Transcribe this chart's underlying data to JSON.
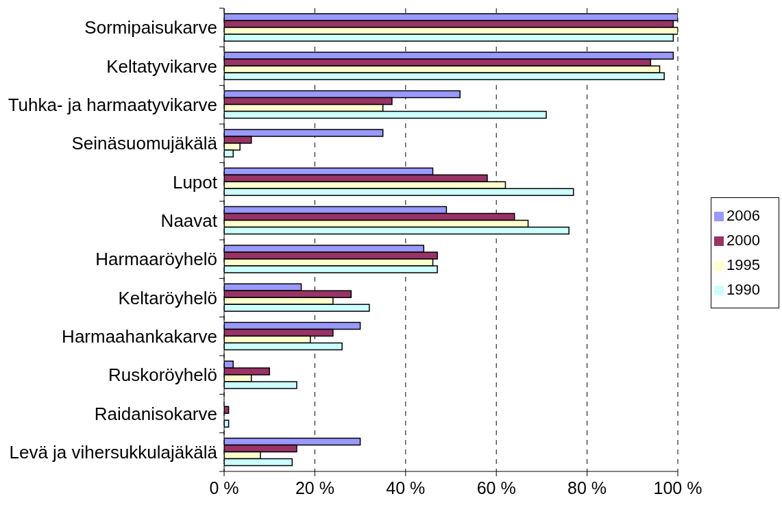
{
  "chart_data": {
    "type": "bar",
    "orientation": "horizontal",
    "categories": [
      "Sormipaisukarve",
      "Keltatyvikarve",
      "Tuhka- ja harmaatyvikarve",
      "Seinäsuomujäkälä",
      "Lupot",
      "Naavat",
      "Harmaaröyhelö",
      "Keltaröyhelö",
      "Harmaahankakarve",
      "Ruskoröyhelö",
      "Raidanisokarve",
      "Levä ja vihersukkulajäkälä"
    ],
    "series": [
      {
        "name": "2006",
        "color": "#9999ff",
        "values": [
          100,
          99,
          52,
          35,
          46,
          49,
          44,
          17,
          30,
          2,
          0,
          30
        ]
      },
      {
        "name": "2000",
        "color": "#993366",
        "values": [
          99,
          94,
          37,
          6,
          58,
          64,
          47,
          28,
          24,
          10,
          1,
          16
        ]
      },
      {
        "name": "1995",
        "color": "#ffffcc",
        "values": [
          100,
          96,
          35,
          3.5,
          62,
          67,
          46,
          24,
          19,
          6,
          0,
          8
        ]
      },
      {
        "name": "1990",
        "color": "#ccffff",
        "values": [
          99,
          97,
          71,
          2,
          77,
          76,
          47,
          32,
          26,
          16,
          1,
          15
        ]
      }
    ],
    "xlim": [
      0,
      100
    ],
    "xticks": [
      {
        "value": 0,
        "label": "0 %"
      },
      {
        "value": 20,
        "label": "20 %"
      },
      {
        "value": 40,
        "label": "40 %"
      },
      {
        "value": 60,
        "label": "60 %"
      },
      {
        "value": 80,
        "label": "80 %"
      },
      {
        "value": 100,
        "label": "100 %"
      }
    ],
    "grid": "x",
    "legend": "right"
  }
}
